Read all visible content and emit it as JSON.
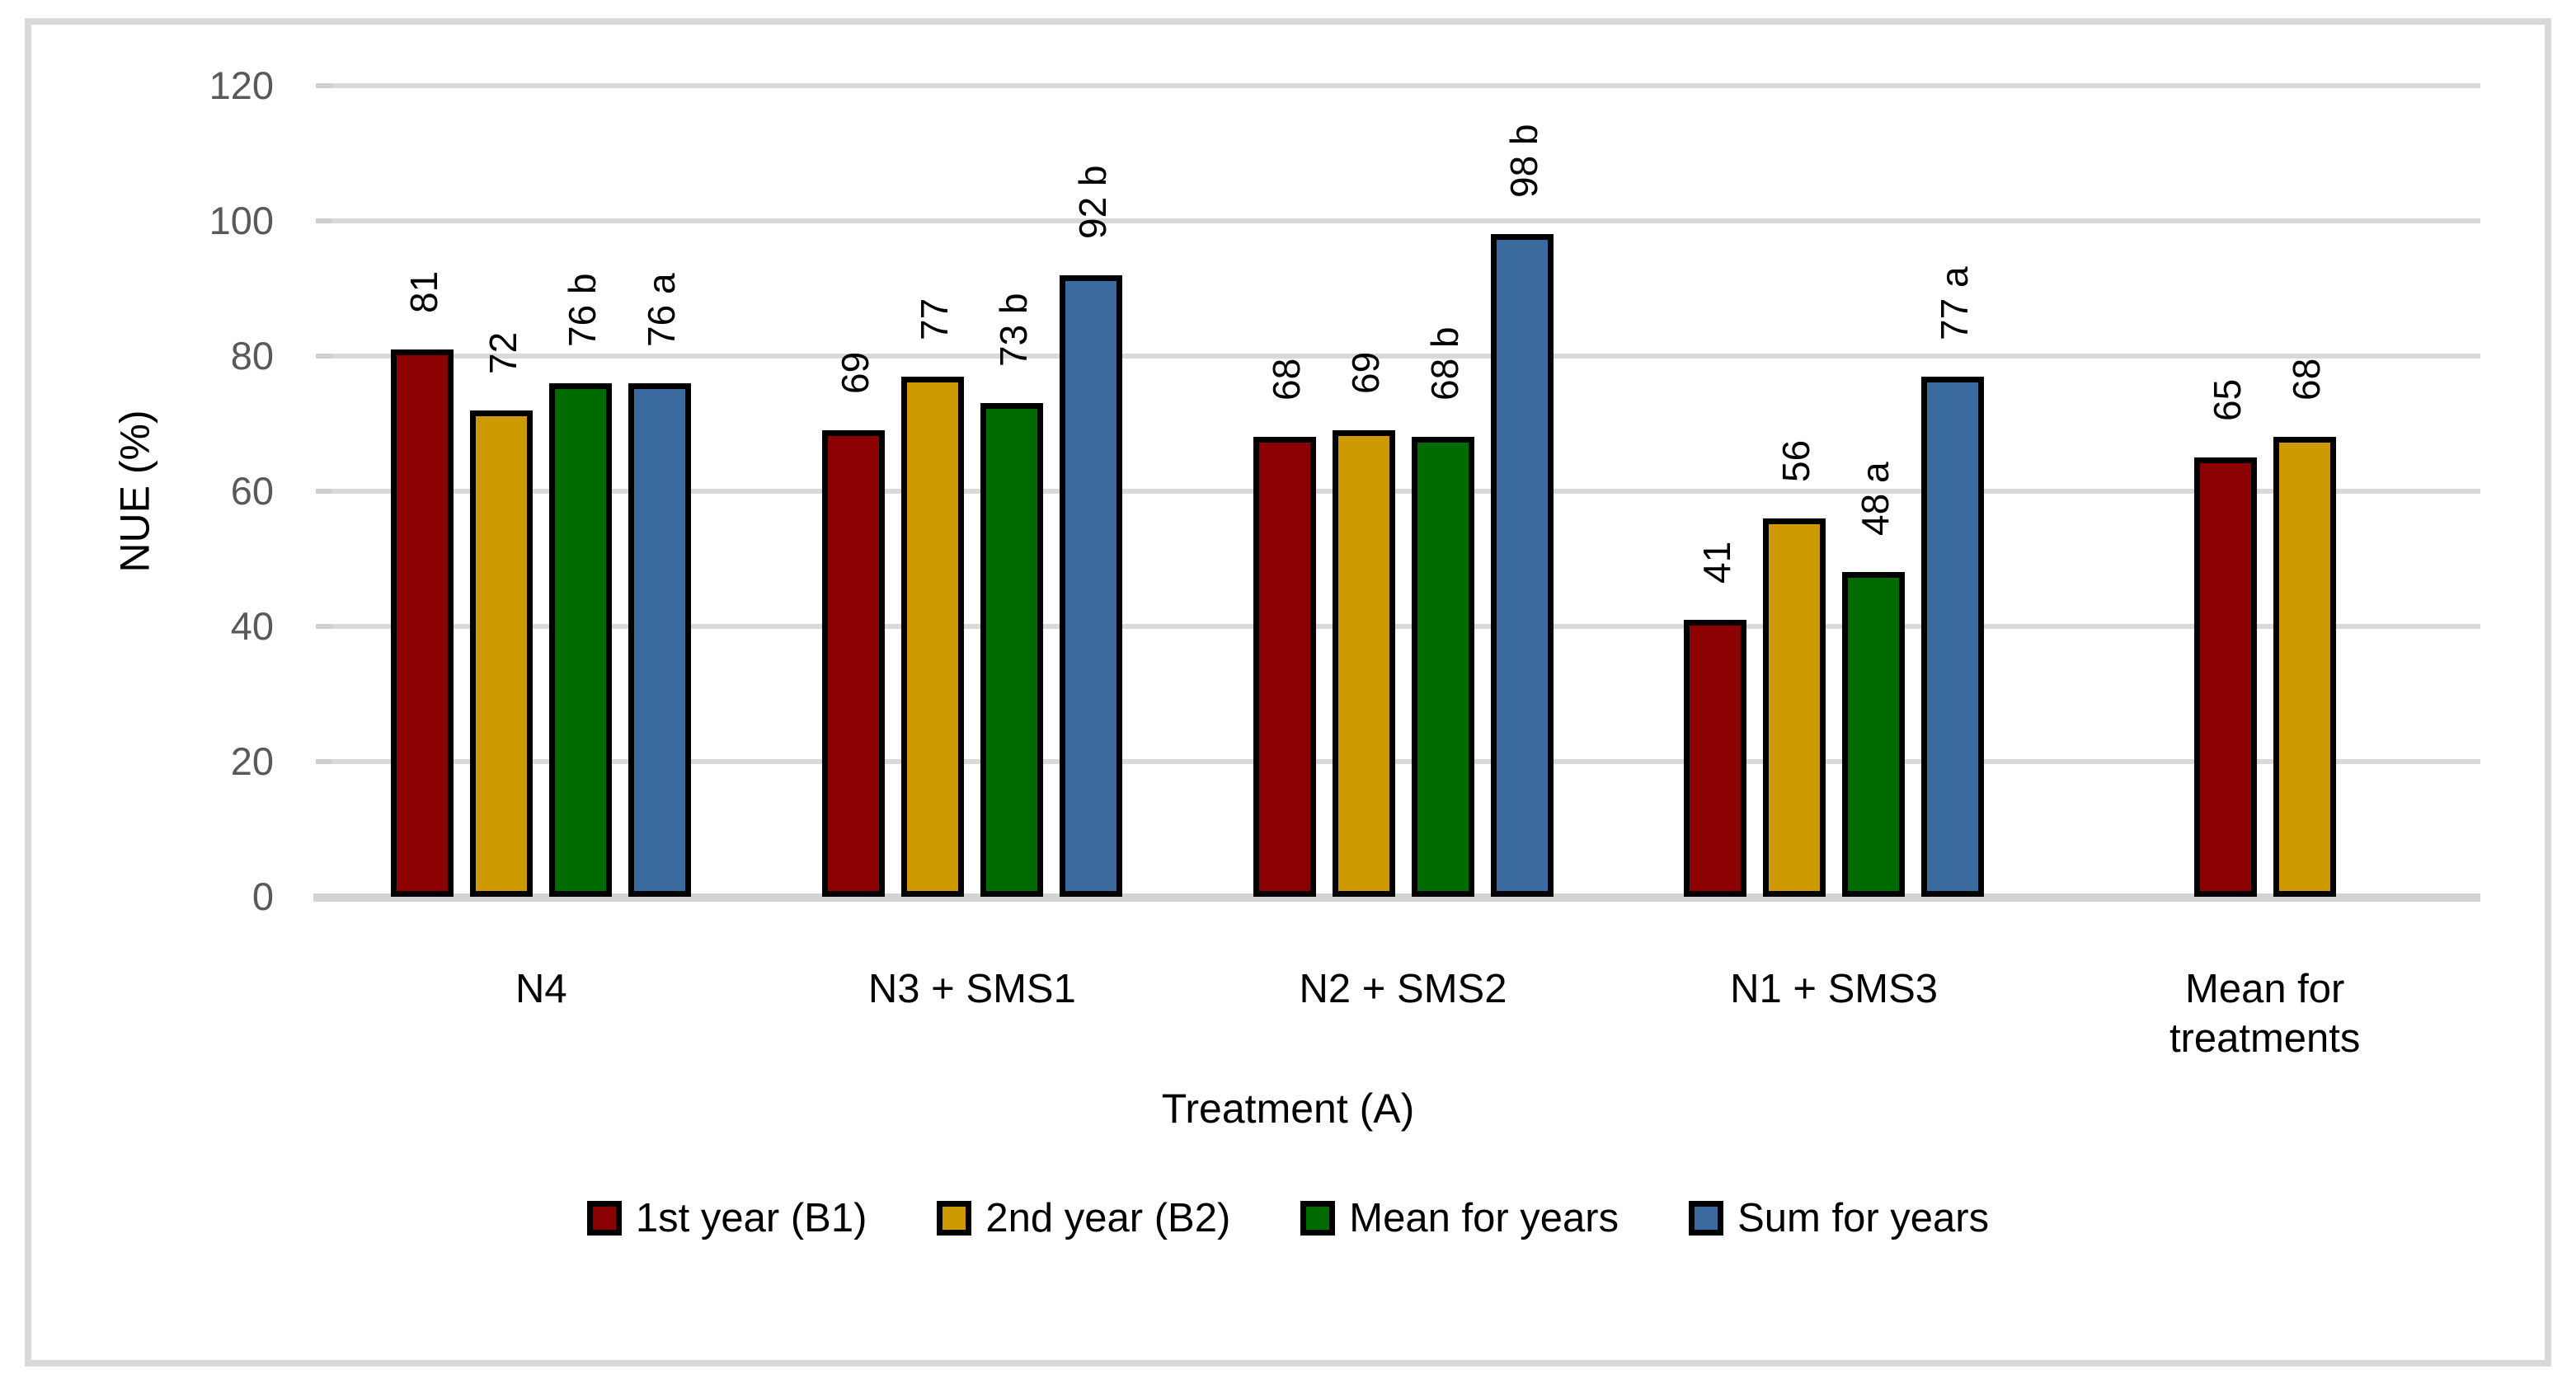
{
  "frame": {
    "border_color": "#D9D9D9"
  },
  "chart_data": {
    "type": "bar",
    "title": "",
    "xlabel": "Treatment (A)",
    "ylabel": "NUE (%)",
    "ylim": [
      0,
      120
    ],
    "yticks": [
      0,
      20,
      40,
      60,
      80,
      100,
      120
    ],
    "grid": true,
    "legend_position": "bottom",
    "value_labels_rotated": true,
    "categories": [
      "N4",
      "N3 + SMS1",
      "N2 + SMS2",
      "N1 + SMS3",
      "Mean for treatments"
    ],
    "series": [
      {
        "name": "1st year (B1)",
        "color": "#8B0000",
        "values": [
          81,
          69,
          68,
          41,
          65
        ],
        "labels": [
          "81",
          "69",
          "68",
          "41",
          "65"
        ]
      },
      {
        "name": "2nd year (B2)",
        "color": "#CC9A00",
        "values": [
          72,
          77,
          69,
          56,
          68
        ],
        "labels": [
          "72",
          "77",
          "69",
          "56",
          "68"
        ]
      },
      {
        "name": "Mean for years",
        "color": "#006B00",
        "values": [
          76,
          73,
          68,
          48,
          null
        ],
        "labels": [
          "76 b",
          "73 b",
          "68 b",
          "48 a",
          null
        ]
      },
      {
        "name": "Sum for years",
        "color": "#3A6A9E",
        "values": [
          76,
          92,
          98,
          77,
          null
        ],
        "labels": [
          "76 a",
          "92 b",
          "98 b",
          "77 a",
          null
        ]
      }
    ],
    "axis_colors": {
      "gridline": "#D9D9D9",
      "axis_line": "#D3D3D3",
      "tick": "#CFCFCF",
      "tick_label": "#595959",
      "bar_border": "#000000"
    }
  }
}
